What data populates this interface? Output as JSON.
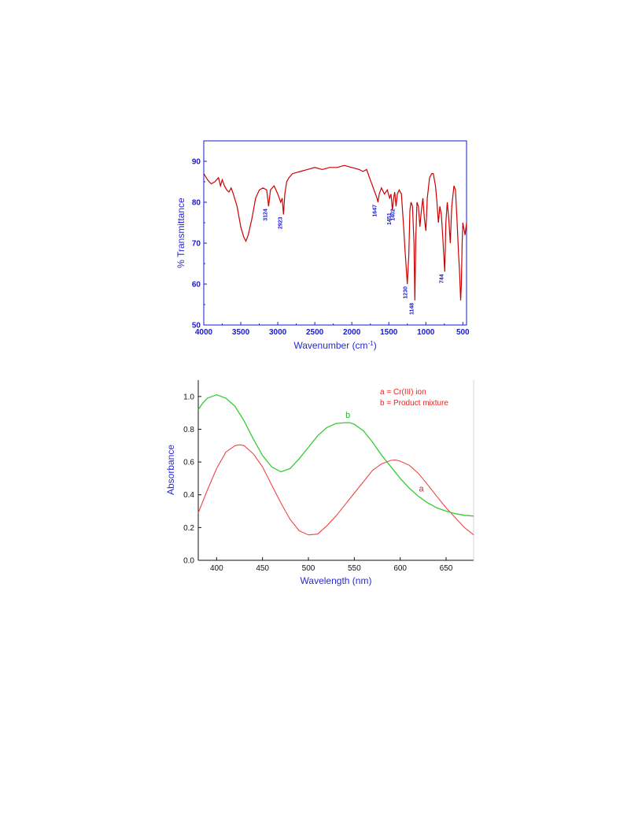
{
  "chart_data": [
    {
      "type": "line",
      "title": "",
      "xlabel": "Wavenumber (cm",
      "xlabel_sup": "-1",
      "xlabel_end": ")",
      "ylabel": "% Transmittance",
      "xlim": [
        4000,
        450
      ],
      "ylim": [
        50,
        95
      ],
      "x_ticks": [
        4000,
        3500,
        3000,
        2500,
        2000,
        1500,
        1000,
        500
      ],
      "y_ticks": [
        50,
        60,
        70,
        80,
        90
      ],
      "y_tick_labels": [
        "50",
        "60",
        "70",
        "80",
        "90"
      ],
      "grid": false,
      "colors": {
        "line": "#cc0000",
        "axis": "#1a1acc"
      },
      "series": [
        {
          "x": [
            4000,
            3950,
            3900,
            3850,
            3800,
            3775,
            3750,
            3720,
            3690,
            3660,
            3630,
            3600,
            3550,
            3500,
            3460,
            3430,
            3400,
            3350,
            3300,
            3250,
            3200,
            3150,
            3124,
            3100,
            3050,
            3000,
            2960,
            2940,
            2923,
            2905,
            2880,
            2850,
            2800,
            2700,
            2600,
            2500,
            2400,
            2300,
            2200,
            2100,
            2000,
            1900,
            1850,
            1800,
            1760,
            1720,
            1680,
            1660,
            1647,
            1630,
            1600,
            1560,
            1520,
            1490,
            1470,
            1451,
            1435,
            1420,
            1402,
            1385,
            1360,
            1330,
            1300,
            1280,
            1250,
            1230,
            1215,
            1200,
            1180,
            1160,
            1148,
            1135,
            1120,
            1100,
            1080,
            1060,
            1040,
            1020,
            1000,
            980,
            950,
            920,
            900,
            870,
            850,
            830,
            810,
            790,
            770,
            760,
            744,
            730,
            710,
            690,
            670,
            650,
            620,
            600,
            580,
            560,
            545,
            530,
            520,
            510,
            500,
            490,
            470,
            450
          ],
          "y": [
            87,
            85.5,
            84.5,
            85,
            86,
            84,
            85.5,
            84,
            83,
            82.5,
            83.5,
            82,
            79,
            74,
            71.5,
            70.5,
            72,
            76,
            81,
            83,
            83.5,
            83,
            79,
            83,
            84,
            82,
            80,
            81,
            77,
            82,
            85,
            86,
            87,
            87.5,
            88,
            88.5,
            88,
            88.5,
            88.5,
            89,
            88.5,
            88,
            87.5,
            88,
            86,
            84,
            82,
            81,
            80,
            82,
            83.5,
            82,
            83,
            81,
            82,
            78,
            81,
            82.5,
            79,
            82,
            83,
            82,
            74,
            68,
            60,
            67,
            78,
            80,
            79,
            70,
            56,
            72,
            80,
            79,
            74,
            78,
            81,
            76,
            73,
            81,
            86,
            87,
            87,
            84,
            80,
            75,
            79,
            77,
            71,
            68,
            63,
            75,
            80,
            76,
            70,
            79,
            84,
            83,
            76,
            68,
            63,
            56,
            60,
            70,
            75,
            74,
            72,
            75
          ]
        }
      ],
      "annotations": [
        {
          "text": "3124",
          "x": 3124,
          "y": 79
        },
        {
          "text": "2923",
          "x": 2923,
          "y": 77
        },
        {
          "text": "1647",
          "x": 1647,
          "y": 80
        },
        {
          "text": "1451",
          "x": 1451,
          "y": 78
        },
        {
          "text": "1402",
          "x": 1402,
          "y": 79
        },
        {
          "text": "1230",
          "x": 1230,
          "y": 60
        },
        {
          "text": "1148",
          "x": 1148,
          "y": 56
        },
        {
          "text": "744",
          "x": 744,
          "y": 63
        }
      ]
    },
    {
      "type": "line",
      "title": "",
      "xlabel": "Wavelength (nm)",
      "ylabel": "Absorbance",
      "xlim": [
        380,
        680
      ],
      "ylim": [
        0.0,
        1.1
      ],
      "x_ticks": [
        400,
        450,
        500,
        550,
        600,
        650
      ],
      "y_ticks": [
        0.0,
        0.2,
        0.4,
        0.6,
        0.8,
        1.0
      ],
      "y_tick_labels": [
        "0.0",
        "0.2",
        "0.4",
        "0.6",
        "0.8",
        "1.0"
      ],
      "grid": false,
      "legend": {
        "placement": "top-right",
        "entries": [
          "a = Cr(III) ion",
          "b = Product mixture"
        ]
      },
      "series": [
        {
          "name": "a",
          "color": "#ee4444",
          "x": [
            380,
            390,
            400,
            410,
            420,
            425,
            430,
            440,
            450,
            460,
            470,
            480,
            490,
            500,
            510,
            520,
            530,
            540,
            550,
            560,
            570,
            580,
            590,
            595,
            600,
            610,
            620,
            630,
            640,
            650,
            660,
            670,
            680
          ],
          "y": [
            0.29,
            0.43,
            0.56,
            0.66,
            0.7,
            0.705,
            0.7,
            0.65,
            0.57,
            0.46,
            0.35,
            0.25,
            0.18,
            0.155,
            0.16,
            0.21,
            0.27,
            0.34,
            0.41,
            0.48,
            0.55,
            0.59,
            0.61,
            0.612,
            0.605,
            0.58,
            0.53,
            0.46,
            0.39,
            0.32,
            0.26,
            0.2,
            0.155
          ]
        },
        {
          "name": "b",
          "color": "#33cc33",
          "x": [
            380,
            385,
            390,
            395,
            400,
            405,
            410,
            420,
            430,
            440,
            450,
            460,
            470,
            480,
            490,
            500,
            510,
            520,
            530,
            540,
            545,
            550,
            560,
            570,
            580,
            590,
            600,
            610,
            620,
            630,
            640,
            650,
            660,
            670,
            680
          ],
          "y": [
            0.92,
            0.96,
            0.99,
            1.0,
            1.01,
            1.0,
            0.99,
            0.94,
            0.85,
            0.74,
            0.64,
            0.57,
            0.54,
            0.56,
            0.62,
            0.69,
            0.76,
            0.81,
            0.835,
            0.84,
            0.84,
            0.83,
            0.79,
            0.72,
            0.64,
            0.57,
            0.5,
            0.44,
            0.39,
            0.35,
            0.32,
            0.3,
            0.285,
            0.275,
            0.27
          ]
        }
      ],
      "annotations": [
        {
          "text": "a",
          "x": 623,
          "y": 0.42,
          "color": "#ee2222"
        },
        {
          "text": "b",
          "x": 543,
          "y": 0.87,
          "color": "#22bb22"
        }
      ]
    }
  ]
}
